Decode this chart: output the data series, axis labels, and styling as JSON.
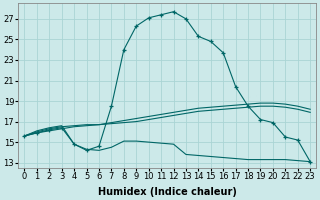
{
  "background_color": "#cce9e9",
  "grid_color": "#aad4d4",
  "line_color": "#006666",
  "xlabel": "Humidex (Indice chaleur)",
  "xlabel_fontsize": 7,
  "yticks": [
    13,
    15,
    17,
    19,
    21,
    23,
    25,
    27
  ],
  "xticks": [
    0,
    1,
    2,
    3,
    4,
    5,
    6,
    7,
    8,
    9,
    10,
    11,
    12,
    13,
    14,
    15,
    16,
    17,
    18,
    19,
    20,
    21,
    22,
    23
  ],
  "ylim": [
    12.5,
    28.5
  ],
  "xlim": [
    -0.5,
    23.5
  ],
  "series": [
    {
      "x": [
        0,
        1,
        2,
        3,
        4,
        5,
        6,
        7,
        8,
        9,
        10,
        11,
        12,
        13,
        14,
        15,
        16,
        17,
        18,
        19,
        20,
        21,
        22,
        23
      ],
      "y": [
        15.6,
        15.9,
        16.2,
        16.4,
        14.8,
        14.2,
        14.6,
        18.5,
        24.0,
        26.3,
        27.1,
        27.4,
        27.7,
        27.0,
        25.3,
        24.8,
        23.7,
        20.4,
        18.5,
        17.2,
        16.9,
        15.5,
        15.2,
        13.1
      ],
      "linestyle": "solid",
      "marker": "+"
    },
    {
      "x": [
        0,
        1,
        2,
        3,
        4,
        5,
        6,
        7,
        8,
        9,
        10,
        11,
        12,
        13,
        14,
        15,
        16,
        17,
        18,
        19,
        20,
        21,
        22,
        23
      ],
      "y": [
        15.6,
        15.9,
        16.1,
        16.3,
        16.5,
        16.6,
        16.7,
        16.9,
        17.1,
        17.3,
        17.5,
        17.7,
        17.9,
        18.1,
        18.3,
        18.4,
        18.5,
        18.6,
        18.7,
        18.8,
        18.8,
        18.7,
        18.5,
        18.2
      ],
      "linestyle": "solid",
      "marker": null
    },
    {
      "x": [
        0,
        1,
        2,
        3,
        4,
        5,
        6,
        7,
        8,
        9,
        10,
        11,
        12,
        13,
        14,
        15,
        16,
        17,
        18,
        19,
        20,
        21,
        22,
        23
      ],
      "y": [
        15.6,
        16.0,
        16.3,
        16.5,
        16.6,
        16.7,
        16.7,
        16.8,
        16.9,
        17.0,
        17.2,
        17.4,
        17.6,
        17.8,
        18.0,
        18.1,
        18.2,
        18.3,
        18.4,
        18.5,
        18.5,
        18.4,
        18.2,
        17.9
      ],
      "linestyle": "solid",
      "marker": null
    },
    {
      "x": [
        0,
        1,
        2,
        3,
        4,
        5,
        6,
        7,
        8,
        9,
        10,
        11,
        12,
        13,
        14,
        15,
        16,
        17,
        18,
        19,
        20,
        21,
        22,
        23
      ],
      "y": [
        15.6,
        16.1,
        16.4,
        16.6,
        14.8,
        14.3,
        14.2,
        14.5,
        15.1,
        15.1,
        15.0,
        14.9,
        14.8,
        13.8,
        13.7,
        13.6,
        13.5,
        13.4,
        13.3,
        13.3,
        13.3,
        13.3,
        13.2,
        13.1
      ],
      "linestyle": "solid",
      "marker": null
    }
  ],
  "tick_fontsize": 6
}
